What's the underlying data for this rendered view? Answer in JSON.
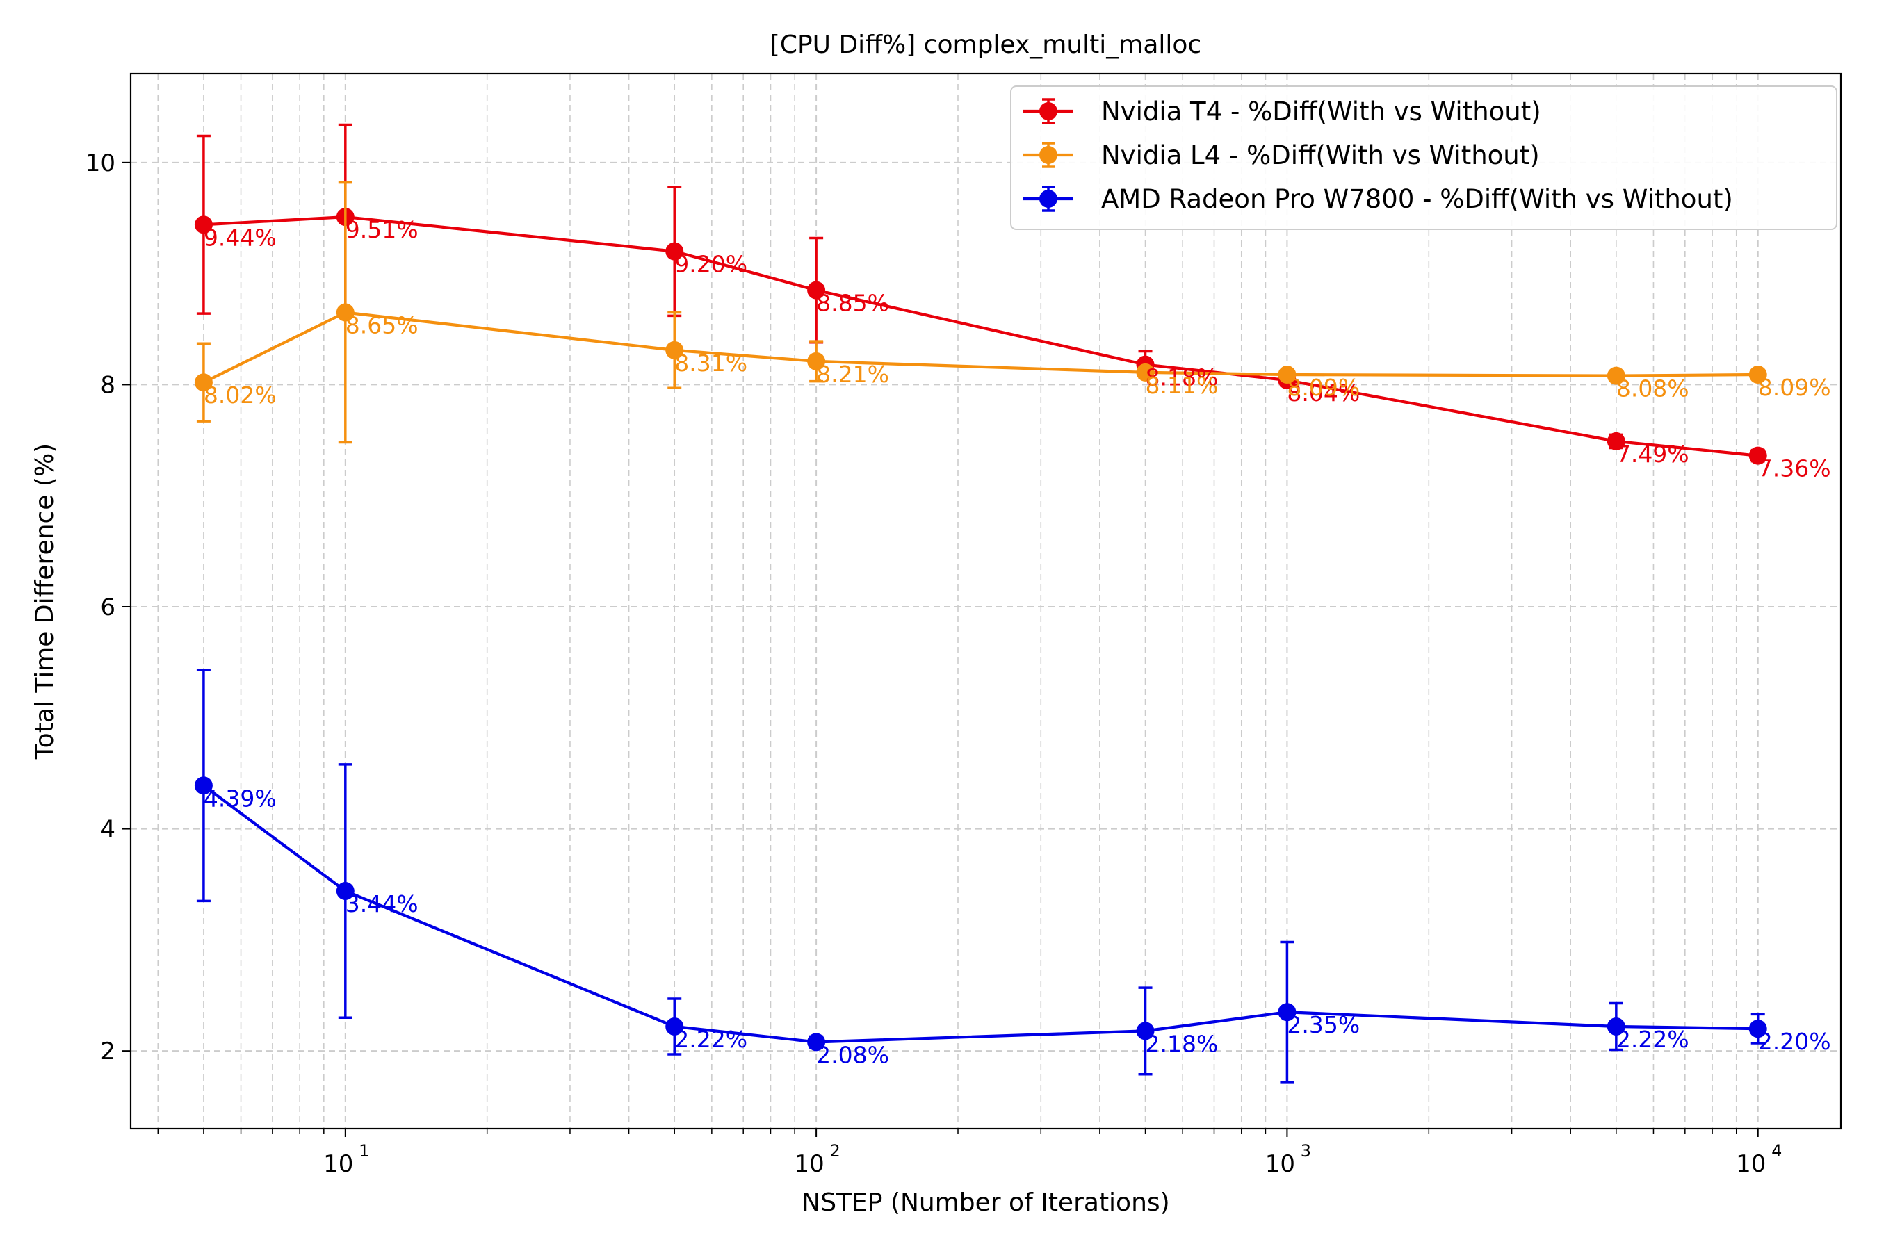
{
  "chart_data": {
    "type": "line",
    "title": "[CPU Diff%] complex_multi_malloc",
    "xlabel": "NSTEP (Number of Iterations)",
    "ylabel": "Total Time Difference (%)",
    "xscale": "log",
    "xlim": [
      3.5,
      15000
    ],
    "ylim": [
      1.3,
      10.8
    ],
    "x_ticks": [
      {
        "value": 10,
        "base": "10",
        "exp": "1"
      },
      {
        "value": 100,
        "base": "10",
        "exp": "2"
      },
      {
        "value": 1000,
        "base": "10",
        "exp": "3"
      },
      {
        "value": 10000,
        "base": "10",
        "exp": "4"
      }
    ],
    "y_ticks": [
      {
        "value": 2,
        "label": "2"
      },
      {
        "value": 4,
        "label": "4"
      },
      {
        "value": 6,
        "label": "6"
      },
      {
        "value": 8,
        "label": "8"
      },
      {
        "value": 10,
        "label": "10"
      }
    ],
    "grid": true,
    "legend_position": "top-right",
    "x": [
      5,
      10,
      50,
      100,
      500,
      1000,
      5000,
      10000
    ],
    "series": [
      {
        "name": "Nvidia T4 - %Diff(With vs Without)",
        "color": "#e8000b",
        "values": [
          9.44,
          9.51,
          9.2,
          8.85,
          8.18,
          8.04,
          7.49,
          7.36
        ],
        "errors": [
          0.8,
          0.83,
          0.58,
          0.47,
          0.12,
          0.05,
          0.06,
          0.05
        ],
        "labels": [
          "9.44%",
          "9.51%",
          "9.20%",
          "8.85%",
          "8.18%",
          "8.04%",
          "7.49%",
          "7.36%"
        ]
      },
      {
        "name": "Nvidia L4 - %Diff(With vs Without)",
        "color": "#f5900f",
        "values": [
          8.02,
          8.65,
          8.31,
          8.21,
          8.11,
          8.09,
          8.08,
          8.09
        ],
        "errors": [
          0.35,
          1.17,
          0.34,
          0.18,
          0.05,
          0.04,
          0.04,
          0.04
        ],
        "labels": [
          "8.02%",
          "8.65%",
          "8.31%",
          "8.21%",
          "8.11%",
          "8.09%",
          "8.08%",
          "8.09%"
        ]
      },
      {
        "name": "AMD Radeon Pro W7800 - %Diff(With vs Without)",
        "color": "#0000e6",
        "values": [
          4.39,
          3.44,
          2.22,
          2.08,
          2.18,
          2.35,
          2.22,
          2.2
        ],
        "errors": [
          1.04,
          1.14,
          0.25,
          0.05,
          0.39,
          0.63,
          0.21,
          0.13
        ],
        "labels": [
          "4.39%",
          "3.44%",
          "2.22%",
          "2.08%",
          "2.18%",
          "2.35%",
          "2.22%",
          "2.20%"
        ]
      }
    ]
  }
}
